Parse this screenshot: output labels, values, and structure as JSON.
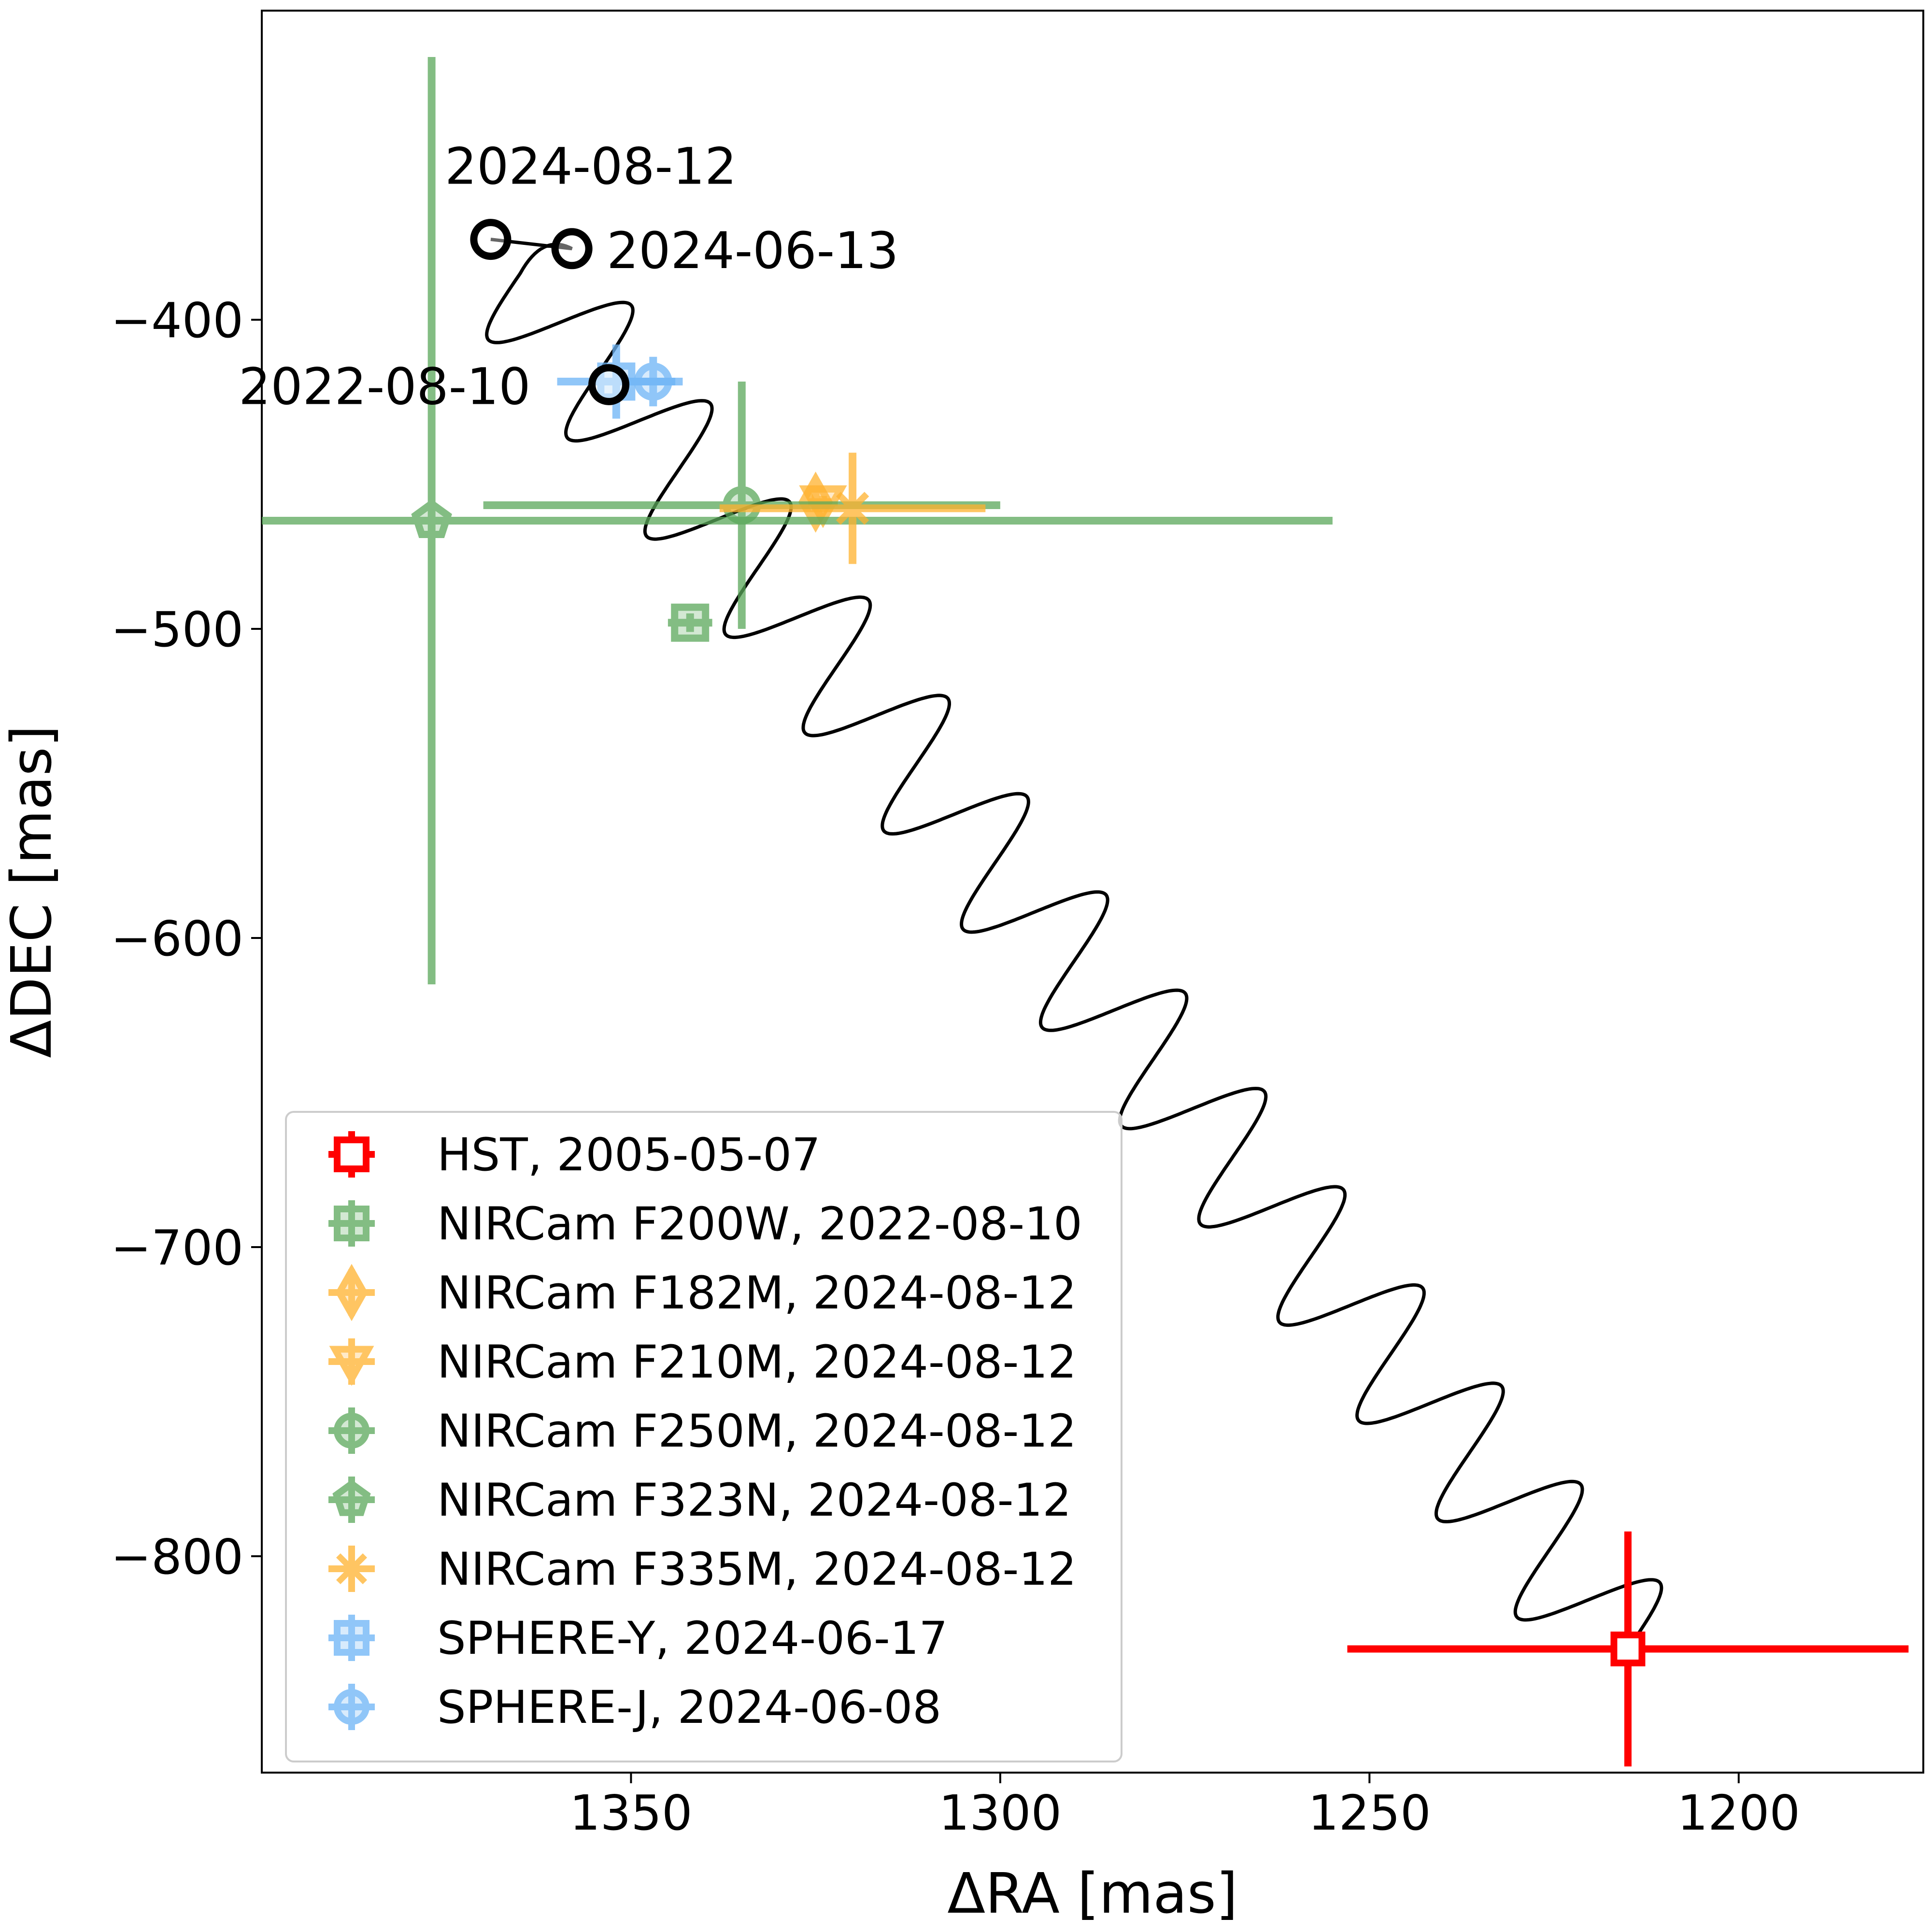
{
  "chart_data": {
    "type": "scatter",
    "xlabel": "ΔRA [mas]",
    "ylabel": "ΔDEC [mas]",
    "xlim": [
      1400,
      1175
    ],
    "ylim": [
      -870,
      -300
    ],
    "x_inverted": true,
    "grid": false,
    "legend_position": "lower-left",
    "x_ticks": [
      {
        "value": 1350,
        "label": "1350"
      },
      {
        "value": 1300,
        "label": "1300"
      },
      {
        "value": 1250,
        "label": "1250"
      },
      {
        "value": 1200,
        "label": "1200"
      }
    ],
    "y_ticks": [
      {
        "value": -400,
        "label": "−400"
      },
      {
        "value": -500,
        "label": "−500"
      },
      {
        "value": -600,
        "label": "−600"
      },
      {
        "value": -700,
        "label": "−700"
      },
      {
        "value": -800,
        "label": "−800"
      }
    ],
    "colors": {
      "red": "#ff0000",
      "green": "#5aa85a",
      "orange": "#ffb22e",
      "blue": "#6cb4f6",
      "black": "#000000"
    },
    "series": [
      {
        "name": "HST, 2005-05-07",
        "marker": "square",
        "color": "#ff0000",
        "alpha": 1.0,
        "x": 1215,
        "y": -830,
        "xerr": 38,
        "yerr": 38
      },
      {
        "name": "NIRCam F200W, 2022-08-10",
        "marker": "square",
        "color": "#5aa85a",
        "alpha": 0.75,
        "x": 1342,
        "y": -498,
        "xerr": 3,
        "yerr": 3
      },
      {
        "name": "NIRCam F182M, 2024-08-12",
        "marker": "diamond",
        "color": "#ffb22e",
        "alpha": 0.75,
        "x": 1325,
        "y": -459,
        "xerr": 2,
        "yerr": 5
      },
      {
        "name": "NIRCam F210M, 2024-08-12",
        "marker": "triangle-down",
        "color": "#ffb22e",
        "alpha": 0.75,
        "x": 1324,
        "y": -459,
        "xerr": 2,
        "yerr": 2
      },
      {
        "name": "NIRCam F250M, 2024-08-12",
        "marker": "circle",
        "color": "#5aa85a",
        "alpha": 0.75,
        "x": 1335,
        "y": -460,
        "xerr": 35,
        "yerr": 40
      },
      {
        "name": "NIRCam F323N, 2024-08-12",
        "marker": "pentagon",
        "color": "#5aa85a",
        "alpha": 0.75,
        "x": 1377,
        "y": -465,
        "xerr": 122,
        "yerr": 150
      },
      {
        "name": "NIRCam F335M, 2024-08-12",
        "marker": "star",
        "color": "#ffb22e",
        "alpha": 0.75,
        "x": 1320,
        "y": -461,
        "xerr": 18,
        "yerr": 18
      },
      {
        "name": "SPHERE-Y, 2024-06-17",
        "marker": "square",
        "color": "#6cb4f6",
        "alpha": 0.75,
        "x": 1352,
        "y": -420,
        "xerr": 8,
        "yerr": 12
      },
      {
        "name": "SPHERE-J, 2024-06-08",
        "marker": "circle",
        "color": "#6cb4f6",
        "alpha": 0.75,
        "x": 1347,
        "y": -420,
        "xerr": 4,
        "yerr": 8
      }
    ],
    "predicted_positions": [
      {
        "label": "2024-08-12",
        "x": 1369,
        "y": -374
      },
      {
        "label": "2024-06-13",
        "x": 1358,
        "y": -377
      },
      {
        "label": "2022-08-10",
        "x": 1353,
        "y": -421
      }
    ],
    "track": {
      "start": {
        "x": 1215,
        "y": -830
      },
      "end": {
        "x": 1365,
        "y": -385
      },
      "cycles": 14,
      "amplitude": 9
    }
  }
}
